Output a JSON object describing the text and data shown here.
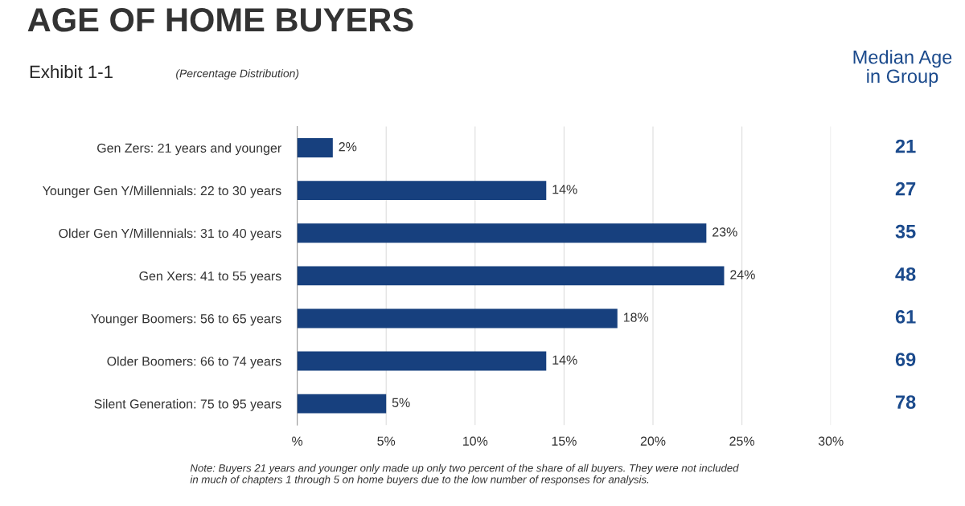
{
  "chart_data": {
    "type": "bar",
    "orientation": "horizontal",
    "title": "AGE OF HOME BUYERS",
    "subtitle": "Exhibit 1-1",
    "categories": [
      "Gen Zers: 21 years and younger",
      "Younger Gen Y/Millennials: 22 to 30 years",
      "Older Gen Y/Millennials: 31 to 40 years",
      "Gen Xers: 41 to 55 years",
      "Younger Boomers: 56 to 65 years",
      "Older Boomers: 66 to 74 years",
      "Silent Generation: 75 to 95 years"
    ],
    "values": [
      2,
      14,
      23,
      24,
      18,
      14,
      5
    ],
    "value_labels": [
      "2%",
      "14%",
      "23%",
      "24%",
      "18%",
      "14%",
      "5%"
    ],
    "color": "#17407e",
    "xlim": [
      0,
      30
    ],
    "xticks": [
      {
        "value": 0,
        "label": "%"
      },
      {
        "value": 5,
        "label": "5%"
      },
      {
        "value": 10,
        "label": "10%"
      },
      {
        "value": 15,
        "label": "15%"
      },
      {
        "value": 20,
        "label": "20%"
      },
      {
        "value": 25,
        "label": "25%"
      },
      {
        "value": 30,
        "label": "30%"
      }
    ],
    "grid": "x",
    "annotations": [
      "(Percentage Distribution)",
      "Median Age\nin Group",
      "21",
      "27",
      "35",
      "48",
      "61",
      "69",
      "78",
      "Note: Buyers 21 years and younger only made up only two percent of the share of all buyers. They were not included\nin much of chapters 1 through 5 on home buyers due to the low number of responses for analysis."
    ]
  }
}
